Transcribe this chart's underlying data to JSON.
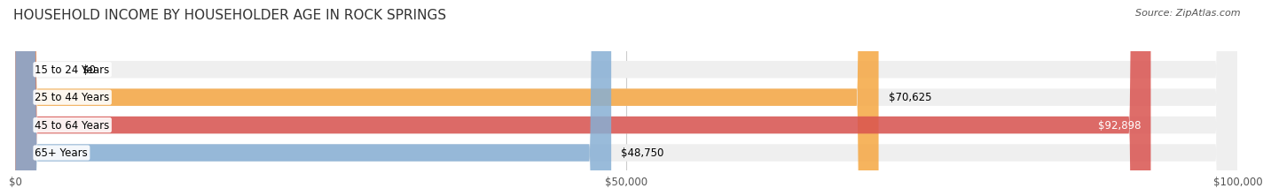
{
  "title": "HOUSEHOLD INCOME BY HOUSEHOLDER AGE IN ROCK SPRINGS",
  "source": "Source: ZipAtlas.com",
  "categories": [
    "15 to 24 Years",
    "25 to 44 Years",
    "45 to 64 Years",
    "65+ Years"
  ],
  "values": [
    0,
    70625,
    92898,
    48750
  ],
  "bar_colors": [
    "#f08080",
    "#f5a742",
    "#d9534f",
    "#87afd4"
  ],
  "bar_bg_color": "#efefef",
  "value_labels": [
    "$0",
    "$70,625",
    "$92,898",
    "$48,750"
  ],
  "xlim": [
    0,
    100000
  ],
  "xtick_values": [
    0,
    50000,
    100000
  ],
  "xtick_labels": [
    "$0",
    "$50,000",
    "$100,000"
  ],
  "title_fontsize": 11,
  "label_fontsize": 8.5,
  "source_fontsize": 8,
  "background_color": "#ffffff"
}
